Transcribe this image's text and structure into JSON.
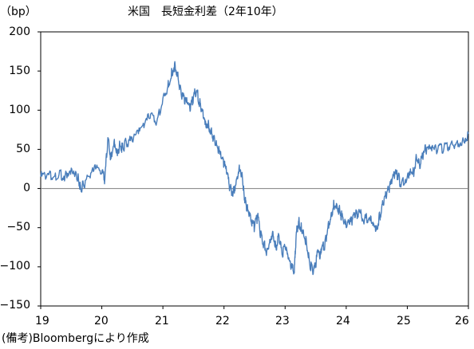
{
  "chart_data": {
    "type": "line",
    "title": "米国　長短金利差（2年10年）",
    "ylabel": "（bp）",
    "xlabel": "",
    "source_note": "(備考)Bloombergにより作成",
    "x_ticks": [
      "19",
      "20",
      "21",
      "22",
      "23",
      "24",
      "25",
      "26"
    ],
    "y_ticks": [
      "200",
      "150",
      "100",
      "50",
      "0",
      "−50",
      "−100",
      "−150"
    ],
    "xlim": [
      2019.0,
      2026.0
    ],
    "ylim": [
      -150,
      200
    ],
    "grid": false,
    "line_color": "#4a7ebb",
    "zero_line_color": "#7f7f7f",
    "series": [
      {
        "x": [
          2019.0,
          2019.1,
          2019.2,
          2019.3,
          2019.4,
          2019.5,
          2019.58,
          2019.62,
          2019.66,
          2019.7,
          2019.8,
          2019.9,
          2020.0,
          2020.05,
          2020.1,
          2020.15,
          2020.2,
          2020.25,
          2020.3,
          2020.35,
          2020.4,
          2020.5,
          2020.6,
          2020.7,
          2020.8,
          2020.9,
          2021.0,
          2021.08,
          2021.15,
          2021.2,
          2021.25,
          2021.3,
          2021.35,
          2021.4,
          2021.45,
          2021.5,
          2021.55,
          2021.6,
          2021.65,
          2021.7,
          2021.75,
          2021.8,
          2021.85,
          2021.9,
          2021.95,
          2022.0,
          2022.05,
          2022.1,
          2022.15,
          2022.2,
          2022.25,
          2022.3,
          2022.33,
          2022.36,
          2022.4,
          2022.45,
          2022.5,
          2022.55,
          2022.6,
          2022.65,
          2022.7,
          2022.75,
          2022.8,
          2022.85,
          2022.9,
          2022.95,
          2023.0,
          2023.05,
          2023.1,
          2023.15,
          2023.18,
          2023.22,
          2023.26,
          2023.3,
          2023.35,
          2023.4,
          2023.45,
          2023.5,
          2023.53,
          2023.57,
          2023.6,
          2023.65,
          2023.7,
          2023.75,
          2023.8,
          2023.85,
          2023.9,
          2023.95,
          2024.0,
          2024.05,
          2024.1,
          2024.15,
          2024.2,
          2024.3,
          2024.4,
          2024.45,
          2024.5,
          2024.55,
          2024.6,
          2024.65,
          2024.7,
          2024.75,
          2024.8,
          2024.85,
          2024.9,
          2025.0,
          2025.05,
          2025.1,
          2025.15,
          2025.2,
          2025.25,
          2025.3,
          2025.4,
          2025.5,
          2025.6,
          2025.7,
          2025.8,
          2025.9,
          2026.0
        ],
        "values": [
          15,
          17,
          14,
          18,
          16,
          26,
          20,
          10,
          -2,
          5,
          15,
          25,
          20,
          12,
          65,
          38,
          60,
          48,
          55,
          50,
          60,
          60,
          70,
          82,
          95,
          85,
          115,
          130,
          150,
          158,
          140,
          120,
          115,
          108,
          100,
          118,
          125,
          110,
          100,
          85,
          80,
          70,
          60,
          50,
          40,
          30,
          20,
          0,
          -5,
          10,
          30,
          15,
          -10,
          -20,
          -30,
          -45,
          -50,
          -35,
          -60,
          -70,
          -80,
          -65,
          -55,
          -75,
          -60,
          -85,
          -75,
          -90,
          -100,
          -108,
          -60,
          -42,
          -50,
          -55,
          -70,
          -95,
          -105,
          -100,
          -80,
          -90,
          -75,
          -72,
          -50,
          -35,
          -20,
          -22,
          -30,
          -40,
          -50,
          -45,
          -40,
          -35,
          -30,
          -40,
          -35,
          -45,
          -50,
          -35,
          -20,
          -10,
          0,
          10,
          20,
          15,
          5,
          15,
          25,
          20,
          40,
          30,
          42,
          50,
          48,
          50,
          52,
          55,
          58,
          60,
          70
        ]
      }
    ]
  }
}
